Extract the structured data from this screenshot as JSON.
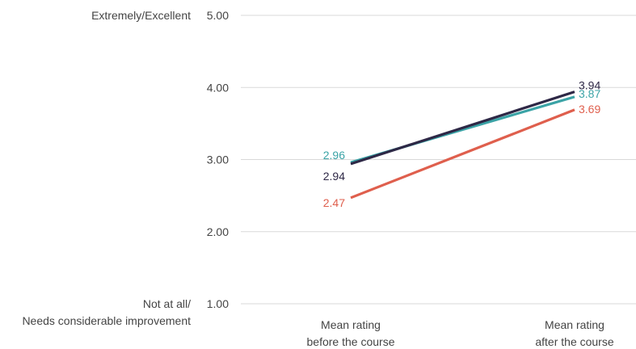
{
  "chart_data": {
    "type": "line",
    "categories": [
      "Mean rating before the course",
      "Mean rating after the course"
    ],
    "category_lines": [
      [
        "Mean rating",
        "before the course"
      ],
      [
        "Mean rating",
        "after the course"
      ]
    ],
    "ylim": [
      1,
      5
    ],
    "yticks": [
      "1.00",
      "2.00",
      "3.00",
      "4.00",
      "5.00"
    ],
    "scale_labels": {
      "top": [
        "Extremely/Excellent"
      ],
      "bottom": [
        "Not at all/",
        "Needs considerable improvement"
      ]
    },
    "grid": true,
    "series": [
      {
        "color": "#df5f4d",
        "values": [
          2.47,
          3.69
        ],
        "labels": [
          "2.47",
          "3.69"
        ]
      },
      {
        "color": "#3ba3a6",
        "values": [
          2.96,
          3.87
        ],
        "labels": [
          "2.96",
          "3.87"
        ]
      },
      {
        "color": "#2e2846",
        "values": [
          2.94,
          3.94
        ],
        "labels": [
          "2.94",
          "3.94"
        ]
      }
    ]
  }
}
